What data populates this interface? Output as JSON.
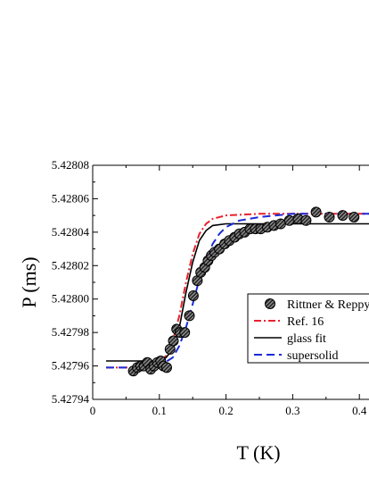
{
  "chart_data": {
    "type": "scatter",
    "xlabel": "T (K)",
    "ylabel": "P (ms)",
    "xlim": [
      0,
      0.42
    ],
    "ylim": [
      5.42794,
      5.42808
    ],
    "x_ticks": [
      0,
      0.1,
      0.2,
      0.3,
      0.4
    ],
    "x_tick_labels": [
      "0",
      "0.1",
      "0.2",
      "0.3",
      "0.4"
    ],
    "y_ticks": [
      5.42794,
      5.42796,
      5.42798,
      5.428,
      5.42802,
      5.42804,
      5.42806,
      5.42808
    ],
    "y_tick_labels": [
      "5.42794",
      "5.42796",
      "5.42798",
      "5.42800",
      "5.42802",
      "5.42804",
      "5.42806",
      "5.42808"
    ],
    "legend_position": "right",
    "grid": false,
    "series": [
      {
        "name": "Rittner & Reppy",
        "kind": "markers",
        "color": "#333333",
        "points": [
          [
            0.061,
            5.427957
          ],
          [
            0.067,
            5.427959
          ],
          [
            0.072,
            5.42796
          ],
          [
            0.077,
            5.42796
          ],
          [
            0.082,
            5.427962
          ],
          [
            0.087,
            5.427958
          ],
          [
            0.092,
            5.42796
          ],
          [
            0.097,
            5.427962
          ],
          [
            0.102,
            5.427963
          ],
          [
            0.106,
            5.42796
          ],
          [
            0.111,
            5.427959
          ],
          [
            0.116,
            5.42797
          ],
          [
            0.121,
            5.427975
          ],
          [
            0.126,
            5.427982
          ],
          [
            0.131,
            5.42798
          ],
          [
            0.138,
            5.42798
          ],
          [
            0.145,
            5.42799
          ],
          [
            0.151,
            5.428002
          ],
          [
            0.157,
            5.428011
          ],
          [
            0.162,
            5.428016
          ],
          [
            0.168,
            5.428019
          ],
          [
            0.173,
            5.428023
          ],
          [
            0.178,
            5.428026
          ],
          [
            0.183,
            5.428028
          ],
          [
            0.19,
            5.42803
          ],
          [
            0.198,
            5.428033
          ],
          [
            0.205,
            5.428035
          ],
          [
            0.213,
            5.428037
          ],
          [
            0.22,
            5.428039
          ],
          [
            0.228,
            5.42804
          ],
          [
            0.236,
            5.428042
          ],
          [
            0.244,
            5.428042
          ],
          [
            0.252,
            5.428042
          ],
          [
            0.262,
            5.428043
          ],
          [
            0.272,
            5.428044
          ],
          [
            0.282,
            5.428045
          ],
          [
            0.295,
            5.428047
          ],
          [
            0.308,
            5.428048
          ],
          [
            0.32,
            5.428047
          ],
          [
            0.335,
            5.428052
          ],
          [
            0.355,
            5.428049
          ],
          [
            0.375,
            5.42805
          ],
          [
            0.392,
            5.428049
          ]
        ]
      },
      {
        "name": "Ref. 16",
        "kind": "line",
        "dash": "dashdot",
        "color": "#e8222e",
        "points": [
          [
            0.02,
            5.427959
          ],
          [
            0.06,
            5.427959
          ],
          [
            0.09,
            5.42796
          ],
          [
            0.1,
            5.427962
          ],
          [
            0.11,
            5.427966
          ],
          [
            0.12,
            5.427975
          ],
          [
            0.13,
            5.42799
          ],
          [
            0.14,
            5.42801
          ],
          [
            0.15,
            5.428027
          ],
          [
            0.16,
            5.428039
          ],
          [
            0.17,
            5.428045
          ],
          [
            0.18,
            5.428048
          ],
          [
            0.2,
            5.42805
          ],
          [
            0.25,
            5.428051
          ],
          [
            0.32,
            5.428051
          ],
          [
            0.42,
            5.428051
          ]
        ]
      },
      {
        "name": "glass fit",
        "kind": "line",
        "dash": "solid",
        "color": "#000000",
        "points": [
          [
            0.02,
            5.427963
          ],
          [
            0.1,
            5.427963
          ],
          [
            0.11,
            5.427965
          ],
          [
            0.12,
            5.42797
          ],
          [
            0.13,
            5.427983
          ],
          [
            0.14,
            5.428004
          ],
          [
            0.15,
            5.428022
          ],
          [
            0.16,
            5.428035
          ],
          [
            0.17,
            5.428041
          ],
          [
            0.18,
            5.428044
          ],
          [
            0.2,
            5.428045
          ],
          [
            0.25,
            5.428045
          ],
          [
            0.42,
            5.428045
          ]
        ]
      },
      {
        "name": "supersolid",
        "kind": "line",
        "dash": "dashed",
        "color": "#1a2bd6",
        "points": [
          [
            0.02,
            5.427959
          ],
          [
            0.08,
            5.427959
          ],
          [
            0.1,
            5.42796
          ],
          [
            0.12,
            5.427965
          ],
          [
            0.13,
            5.427972
          ],
          [
            0.14,
            5.427983
          ],
          [
            0.15,
            5.427997
          ],
          [
            0.16,
            5.428012
          ],
          [
            0.17,
            5.428024
          ],
          [
            0.18,
            5.428033
          ],
          [
            0.19,
            5.428039
          ],
          [
            0.2,
            5.428043
          ],
          [
            0.22,
            5.428047
          ],
          [
            0.25,
            5.428049
          ],
          [
            0.3,
            5.428051
          ],
          [
            0.42,
            5.428051
          ]
        ]
      }
    ]
  }
}
